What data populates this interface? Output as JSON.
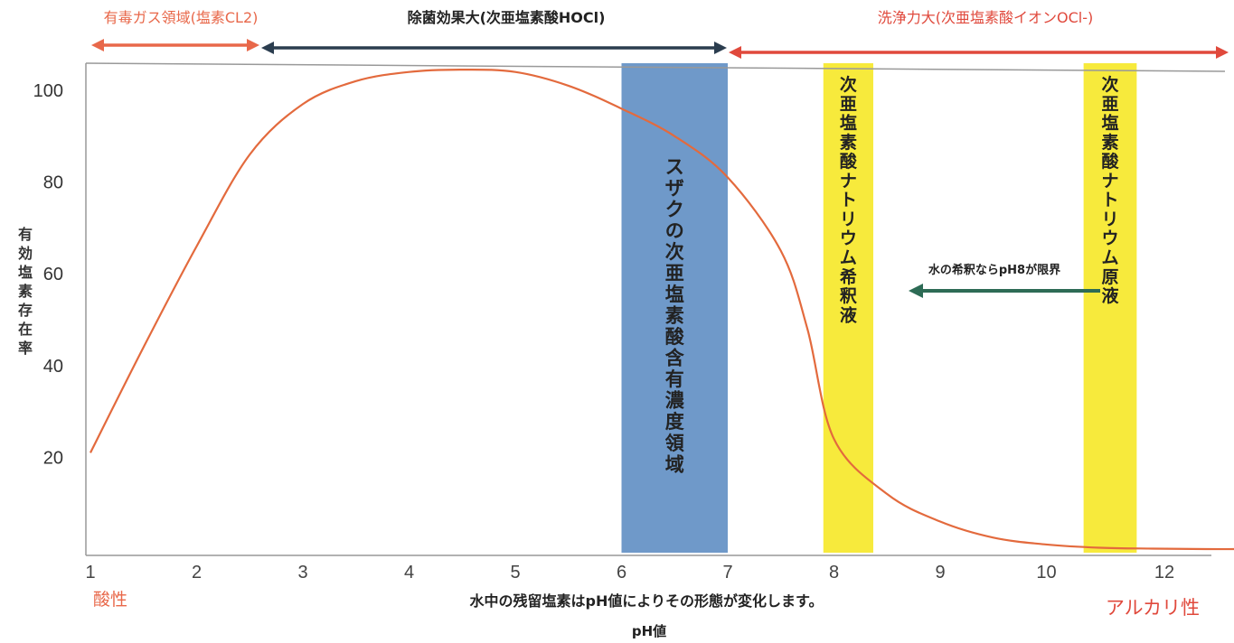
{
  "chart_data": {
    "type": "line",
    "title": "",
    "xlabel": "pH値",
    "ylabel": "有効塩素存在率",
    "subtitle_below": "水中の残留塩素はpH値によりその形態が変化します。",
    "xlim": [
      1,
      12.5
    ],
    "ylim": [
      0,
      106
    ],
    "x_ticks": [
      1,
      2,
      3,
      4,
      5,
      6,
      7,
      8,
      9,
      10,
      12
    ],
    "y_ticks": [
      20,
      40,
      60,
      80,
      100
    ],
    "acid_label": "酸性",
    "alkali_label": "アルカリ性",
    "series": [
      {
        "color": "#e36a3d",
        "x": [
          1.0,
          1.5,
          2.0,
          2.5,
          3.0,
          3.5,
          4.0,
          4.5,
          5.0,
          5.5,
          6.0,
          6.5,
          7.0,
          7.5,
          7.75,
          8.0,
          8.5,
          9.0,
          9.5,
          10.0,
          10.5,
          11.0,
          11.5,
          12.0
        ],
        "y": [
          21,
          44,
          66,
          86,
          97,
          102,
          104,
          104.5,
          104,
          101,
          96,
          90,
          81,
          65,
          48,
          24,
          12,
          6,
          2.5,
          1,
          0.3,
          0.1,
          0,
          0
        ]
      }
    ],
    "bands": [
      {
        "x_from": 6.0,
        "x_to": 7.0,
        "color": "#6f99c9",
        "label": "スザクの次亜塩素酸含有濃度領域"
      },
      {
        "x_from": 7.9,
        "x_to": 8.37,
        "color": "#f7ea3c",
        "label": "次亜塩素酸ナトリウム希釈液"
      },
      {
        "x_from": 10.35,
        "x_to": 10.85,
        "color": "#f7ea3c",
        "label": "次亜塩素酸ナトリウム原液"
      }
    ],
    "top_arrows": [
      {
        "label": "有毒ガス領域(塩素CL2)",
        "x_from": 1.0,
        "x_to": 2.6,
        "color": "#e8684a"
      },
      {
        "label": "除菌効果大(次亜塩素酸HOCl)",
        "x_from": 2.6,
        "x_to": 7.0,
        "color": "#2b3d4f"
      },
      {
        "label": "洗浄力大(次亜塩素酸イオンOCl-)",
        "x_from": 7.0,
        "x_to": 12.5,
        "color": "#e0493c"
      }
    ],
    "annotation": {
      "label": "水の希釈ならpH8が限界",
      "x_from": 10.2,
      "x_to": 8.6,
      "y": 57,
      "color": "#2d6b55"
    }
  }
}
